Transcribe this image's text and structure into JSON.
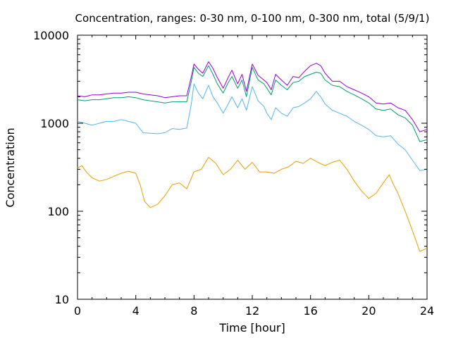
{
  "chart_data": {
    "type": "line",
    "title": "Concentration, ranges: 0-30 nm, 0-100 nm, 0-300 nm, total (5/9/1)",
    "xlabel": "Time [hour]",
    "ylabel": "Concentration",
    "xlim": [
      0,
      24
    ],
    "ylim": [
      10,
      10000
    ],
    "yscale": "log",
    "grid": false,
    "legend": "none",
    "x_ticks": [
      "0",
      "4",
      "8",
      "12",
      "16",
      "20",
      "24"
    ],
    "y_ticks": [
      "10",
      "100",
      "1000",
      "10000"
    ],
    "series": [
      {
        "color": "#9400d3",
        "points": [
          [
            0,
            2050
          ],
          [
            0.5,
            2000
          ],
          [
            1,
            2100
          ],
          [
            1.5,
            2100
          ],
          [
            2,
            2150
          ],
          [
            2.5,
            2200
          ],
          [
            3,
            2200
          ],
          [
            3.5,
            2250
          ],
          [
            4,
            2250
          ],
          [
            4.5,
            2150
          ],
          [
            5,
            2100
          ],
          [
            5.5,
            2050
          ],
          [
            6,
            1950
          ],
          [
            6.5,
            2000
          ],
          [
            7,
            2050
          ],
          [
            7.5,
            2050
          ],
          [
            7.8,
            3300
          ],
          [
            8,
            4700
          ],
          [
            8.3,
            4100
          ],
          [
            8.6,
            3700
          ],
          [
            9,
            5000
          ],
          [
            9.3,
            4200
          ],
          [
            9.6,
            3300
          ],
          [
            10,
            2500
          ],
          [
            10.3,
            3200
          ],
          [
            10.6,
            4000
          ],
          [
            11,
            2800
          ],
          [
            11.3,
            3600
          ],
          [
            11.6,
            2300
          ],
          [
            12,
            4700
          ],
          [
            12.4,
            3500
          ],
          [
            12.8,
            3100
          ],
          [
            13,
            2900
          ],
          [
            13.3,
            2400
          ],
          [
            13.6,
            3600
          ],
          [
            14,
            3100
          ],
          [
            14.4,
            2700
          ],
          [
            14.8,
            3400
          ],
          [
            15.2,
            3300
          ],
          [
            15.6,
            3900
          ],
          [
            16,
            4500
          ],
          [
            16.4,
            4800
          ],
          [
            16.7,
            4500
          ],
          [
            17,
            3700
          ],
          [
            17.5,
            3000
          ],
          [
            18,
            3000
          ],
          [
            18.5,
            2600
          ],
          [
            19,
            2400
          ],
          [
            19.5,
            2200
          ],
          [
            20,
            2000
          ],
          [
            20.5,
            1700
          ],
          [
            21,
            1650
          ],
          [
            21.5,
            1700
          ],
          [
            22,
            1500
          ],
          [
            22.5,
            1400
          ],
          [
            23,
            1100
          ],
          [
            23.5,
            800
          ],
          [
            24,
            850
          ]
        ]
      },
      {
        "color": "#009e73",
        "points": [
          [
            0,
            1850
          ],
          [
            0.5,
            1800
          ],
          [
            1,
            1850
          ],
          [
            1.5,
            1850
          ],
          [
            2,
            1900
          ],
          [
            2.5,
            1950
          ],
          [
            3,
            1950
          ],
          [
            3.5,
            2000
          ],
          [
            4,
            1950
          ],
          [
            4.5,
            1850
          ],
          [
            5,
            1800
          ],
          [
            5.5,
            1750
          ],
          [
            6,
            1700
          ],
          [
            6.5,
            1750
          ],
          [
            7,
            1750
          ],
          [
            7.5,
            1750
          ],
          [
            7.8,
            2900
          ],
          [
            8,
            4300
          ],
          [
            8.3,
            3700
          ],
          [
            8.6,
            3400
          ],
          [
            9,
            4500
          ],
          [
            9.3,
            3600
          ],
          [
            9.6,
            2800
          ],
          [
            10,
            2200
          ],
          [
            10.3,
            2800
          ],
          [
            10.6,
            3400
          ],
          [
            11,
            2500
          ],
          [
            11.3,
            3100
          ],
          [
            11.6,
            2000
          ],
          [
            12,
            4300
          ],
          [
            12.4,
            3100
          ],
          [
            12.8,
            2800
          ],
          [
            13,
            2500
          ],
          [
            13.3,
            2100
          ],
          [
            13.6,
            3100
          ],
          [
            14,
            2700
          ],
          [
            14.4,
            2400
          ],
          [
            14.8,
            2900
          ],
          [
            15.2,
            3000
          ],
          [
            15.6,
            3400
          ],
          [
            16,
            3600
          ],
          [
            16.4,
            3800
          ],
          [
            16.7,
            3700
          ],
          [
            17,
            3100
          ],
          [
            17.5,
            2700
          ],
          [
            18,
            2600
          ],
          [
            18.5,
            2300
          ],
          [
            19,
            2100
          ],
          [
            19.5,
            1900
          ],
          [
            20,
            1700
          ],
          [
            20.5,
            1450
          ],
          [
            21,
            1400
          ],
          [
            21.5,
            1450
          ],
          [
            22,
            1250
          ],
          [
            22.5,
            1150
          ],
          [
            23,
            950
          ],
          [
            23.5,
            620
          ],
          [
            24,
            650
          ]
        ]
      },
      {
        "color": "#56b4e9",
        "points": [
          [
            0,
            1050
          ],
          [
            0.5,
            1000
          ],
          [
            1,
            950
          ],
          [
            1.5,
            1000
          ],
          [
            2,
            1050
          ],
          [
            2.5,
            1050
          ],
          [
            3,
            1100
          ],
          [
            3.5,
            1050
          ],
          [
            4,
            1000
          ],
          [
            4.5,
            780
          ],
          [
            5,
            770
          ],
          [
            5.5,
            760
          ],
          [
            6,
            780
          ],
          [
            6.5,
            870
          ],
          [
            7,
            850
          ],
          [
            7.5,
            880
          ],
          [
            7.8,
            1600
          ],
          [
            8,
            2800
          ],
          [
            8.3,
            2200
          ],
          [
            8.6,
            1900
          ],
          [
            9,
            2700
          ],
          [
            9.3,
            2000
          ],
          [
            9.6,
            1700
          ],
          [
            10,
            1300
          ],
          [
            10.3,
            1600
          ],
          [
            10.6,
            2000
          ],
          [
            11,
            1500
          ],
          [
            11.3,
            1900
          ],
          [
            11.6,
            1400
          ],
          [
            12,
            2600
          ],
          [
            12.4,
            1800
          ],
          [
            12.8,
            1550
          ],
          [
            13,
            1300
          ],
          [
            13.3,
            1100
          ],
          [
            13.6,
            1500
          ],
          [
            14,
            1300
          ],
          [
            14.4,
            1200
          ],
          [
            14.8,
            1500
          ],
          [
            15.2,
            1550
          ],
          [
            15.6,
            1700
          ],
          [
            16,
            1900
          ],
          [
            16.4,
            2300
          ],
          [
            16.7,
            2000
          ],
          [
            17,
            1650
          ],
          [
            17.5,
            1400
          ],
          [
            18,
            1300
          ],
          [
            18.5,
            1200
          ],
          [
            19,
            1050
          ],
          [
            19.5,
            950
          ],
          [
            20,
            850
          ],
          [
            20.5,
            720
          ],
          [
            21,
            700
          ],
          [
            21.5,
            720
          ],
          [
            22,
            580
          ],
          [
            22.5,
            500
          ],
          [
            23,
            380
          ],
          [
            23.5,
            290
          ],
          [
            24,
            300
          ]
        ]
      },
      {
        "color": "#e69f00",
        "points": [
          [
            0,
            310
          ],
          [
            0.3,
            330
          ],
          [
            0.6,
            280
          ],
          [
            1,
            240
          ],
          [
            1.5,
            220
          ],
          [
            2,
            230
          ],
          [
            2.5,
            250
          ],
          [
            3,
            270
          ],
          [
            3.5,
            285
          ],
          [
            4,
            270
          ],
          [
            4.3,
            200
          ],
          [
            4.6,
            130
          ],
          [
            5,
            110
          ],
          [
            5.5,
            120
          ],
          [
            6,
            150
          ],
          [
            6.5,
            200
          ],
          [
            7,
            210
          ],
          [
            7.5,
            180
          ],
          [
            8,
            280
          ],
          [
            8.5,
            300
          ],
          [
            9,
            410
          ],
          [
            9.5,
            350
          ],
          [
            10,
            260
          ],
          [
            10.5,
            300
          ],
          [
            11,
            380
          ],
          [
            11.5,
            300
          ],
          [
            12,
            360
          ],
          [
            12.5,
            280
          ],
          [
            13,
            280
          ],
          [
            13.5,
            270
          ],
          [
            14,
            300
          ],
          [
            14.5,
            320
          ],
          [
            15,
            370
          ],
          [
            15.5,
            350
          ],
          [
            16,
            400
          ],
          [
            16.5,
            360
          ],
          [
            17,
            330
          ],
          [
            17.5,
            360
          ],
          [
            18,
            380
          ],
          [
            18.5,
            300
          ],
          [
            19,
            220
          ],
          [
            19.5,
            170
          ],
          [
            20,
            140
          ],
          [
            20.5,
            160
          ],
          [
            21,
            210
          ],
          [
            21.4,
            260
          ],
          [
            21.7,
            200
          ],
          [
            22,
            160
          ],
          [
            22.5,
            100
          ],
          [
            23,
            60
          ],
          [
            23.5,
            35
          ],
          [
            24,
            38
          ]
        ]
      }
    ]
  }
}
